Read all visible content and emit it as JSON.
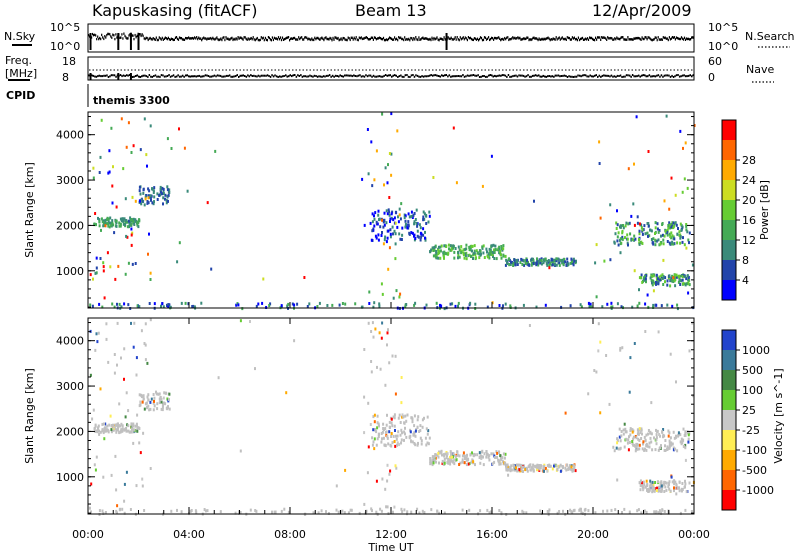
{
  "header": {
    "station": "Kapuskasing (fitACF)",
    "beam": "Beam 13",
    "date": "12/Apr/2009"
  },
  "panels": {
    "nsky_label": "N.Sky",
    "nsearch_label": "N.Search",
    "nsky_ticks": [
      "10^5",
      "10^0"
    ],
    "nsearch_ticks": [
      "10^5",
      "10^0"
    ],
    "freq_label_1": "Freq.",
    "freq_label_2": "[MHz]",
    "freq_ticks": [
      "18",
      "8"
    ],
    "nave_label": "Nave",
    "nave_ticks": [
      "60",
      "0"
    ],
    "cpid_label": "CPID",
    "cpid_value": "themis 3300"
  },
  "colors": {
    "power": [
      "#0000ff",
      "#2244aa",
      "#3a8a7a",
      "#44aa55",
      "#66cc33",
      "#ccdd22",
      "#ffaa00",
      "#ff6600",
      "#ff0000"
    ],
    "velocity": [
      "#2244cc",
      "#3a7a9a",
      "#448844",
      "#66cc33",
      "#c8c8c8",
      "#ffee55",
      "#ffaa00",
      "#ff6600",
      "#ff0000"
    ],
    "ground": "#c0c0c0"
  },
  "chart_data": [
    {
      "type": "heatmap",
      "title": "Power",
      "xlabel": "Time UT",
      "ylabel": "Slant Range [km]",
      "xlim": [
        "00:00",
        "00:00"
      ],
      "x_ticks": [
        "00:00",
        "04:00",
        "08:00",
        "12:00",
        "16:00",
        "20:00",
        "00:00"
      ],
      "ylim": [
        180,
        4500
      ],
      "y_ticks": [
        1000,
        2000,
        3000,
        4000
      ],
      "colorbar": {
        "label": "Power [dB]",
        "ticks": [
          4,
          8,
          12,
          16,
          20,
          24,
          28
        ],
        "range": [
          0,
          30
        ]
      },
      "regions": [
        {
          "t_start": 0.2,
          "t_end": 2.0,
          "range_km": [
            2000,
            2200
          ],
          "value": "12-16"
        },
        {
          "t_start": 2.0,
          "t_end": 3.2,
          "range_km": [
            2500,
            2900
          ],
          "value": "8-12"
        },
        {
          "t_start": 11.2,
          "t_end": 13.5,
          "range_km": [
            1700,
            2400
          ],
          "value": "4-12"
        },
        {
          "t_start": 13.5,
          "t_end": 16.5,
          "range_km": [
            1300,
            1600
          ],
          "value": "12-20"
        },
        {
          "t_start": 16.5,
          "t_end": 19.3,
          "range_km": [
            1150,
            1300
          ],
          "value": "8-16"
        },
        {
          "t_start": 20.8,
          "t_end": 23.8,
          "range_km": [
            1600,
            2100
          ],
          "value": "8-20"
        },
        {
          "t_start": 21.8,
          "t_end": 23.8,
          "range_km": [
            700,
            950
          ],
          "value": "8-20"
        }
      ]
    },
    {
      "type": "heatmap",
      "title": "Velocity",
      "xlabel": "Time UT",
      "ylabel": "Slant Range [km]",
      "xlim": [
        "00:00",
        "00:00"
      ],
      "x_ticks": [
        "00:00",
        "04:00",
        "08:00",
        "12:00",
        "16:00",
        "20:00",
        "00:00"
      ],
      "ylim": [
        180,
        4500
      ],
      "y_ticks": [
        1000,
        2000,
        3000,
        4000
      ],
      "colorbar": {
        "label": "Velocity [m s^-1]",
        "ticks": [
          1000,
          500,
          100,
          25,
          -25,
          -100,
          -500,
          -1000
        ]
      },
      "dominant_value": "ground scatter (gray) for most echoes"
    }
  ]
}
